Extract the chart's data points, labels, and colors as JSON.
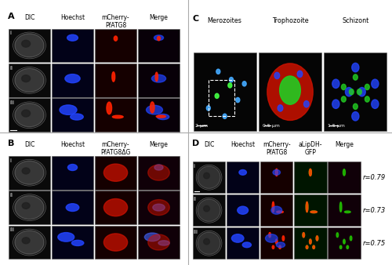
{
  "fig_width": 5.0,
  "fig_height": 3.38,
  "dpi": 100,
  "bg_color": "#ffffff",
  "panel_bg": "#000000",
  "border_color": "#aaaaaa",
  "panel_A": {
    "label": "A",
    "col_headers": [
      "DIC",
      "Hoechst",
      "mCherry-\nPfATG8",
      "Merge"
    ],
    "row_labels": [
      "i",
      "ii",
      "iii"
    ],
    "col_colors": [
      "#888888",
      "#0000ff",
      "#ff0000",
      "#cc00cc"
    ],
    "row_colors": [
      "#888888",
      "#888888",
      "#888888"
    ]
  },
  "panel_B": {
    "label": "B",
    "col_headers": [
      "DIC",
      "Hoechst",
      "mCherry-\nPfATG8ΔG",
      "Merge"
    ],
    "row_labels": [
      "i",
      "ii",
      "iii"
    ],
    "col_colors": [
      "#888888",
      "#0000ff",
      "#ff0000",
      "#cc00cc"
    ]
  },
  "panel_C": {
    "label": "C",
    "col_headers": [
      "Merozoites",
      "Trophozoite",
      "Schizont"
    ],
    "scale_bars": [
      "2 µm",
      "0.5 µm",
      "1.5 µm"
    ]
  },
  "panel_D": {
    "label": "D",
    "col_headers": [
      "DIC",
      "Hoechst",
      "mCherry-\nPfATG8",
      "aLipDH-\nGFP",
      "Merge"
    ],
    "row_labels": [
      "i",
      "ii",
      "iii"
    ],
    "r_values": [
      "r=0.79",
      "r=0.73",
      "r=0.75"
    ]
  },
  "outer_border_color": "#cccccc",
  "label_color": "#000000",
  "header_fontsize": 5.5,
  "label_fontsize": 8,
  "row_label_fontsize": 5,
  "scale_fontsize": 4.5
}
